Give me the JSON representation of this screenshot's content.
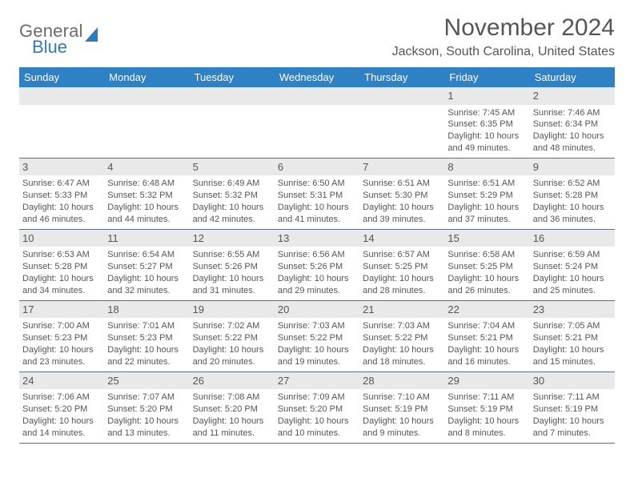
{
  "brand": {
    "word1": "General",
    "word2": "Blue"
  },
  "title": "November 2024",
  "location": "Jackson, South Carolina, United States",
  "colors": {
    "header_bg": "#2e81c4",
    "header_fg": "#ffffff",
    "daynum_bg": "#e9e9e9",
    "week_border": "#5b7086",
    "text": "#555555",
    "brand_gray": "#6b6b6b",
    "brand_blue": "#2e7bc0"
  },
  "dayLabels": [
    "Sunday",
    "Monday",
    "Tuesday",
    "Wednesday",
    "Thursday",
    "Friday",
    "Saturday"
  ],
  "weeks": [
    [
      null,
      null,
      null,
      null,
      null,
      {
        "n": "1",
        "sunrise": "7:45 AM",
        "sunset": "6:35 PM",
        "daylight": "10 hours and 49 minutes."
      },
      {
        "n": "2",
        "sunrise": "7:46 AM",
        "sunset": "6:34 PM",
        "daylight": "10 hours and 48 minutes."
      }
    ],
    [
      {
        "n": "3",
        "sunrise": "6:47 AM",
        "sunset": "5:33 PM",
        "daylight": "10 hours and 46 minutes."
      },
      {
        "n": "4",
        "sunrise": "6:48 AM",
        "sunset": "5:32 PM",
        "daylight": "10 hours and 44 minutes."
      },
      {
        "n": "5",
        "sunrise": "6:49 AM",
        "sunset": "5:32 PM",
        "daylight": "10 hours and 42 minutes."
      },
      {
        "n": "6",
        "sunrise": "6:50 AM",
        "sunset": "5:31 PM",
        "daylight": "10 hours and 41 minutes."
      },
      {
        "n": "7",
        "sunrise": "6:51 AM",
        "sunset": "5:30 PM",
        "daylight": "10 hours and 39 minutes."
      },
      {
        "n": "8",
        "sunrise": "6:51 AM",
        "sunset": "5:29 PM",
        "daylight": "10 hours and 37 minutes."
      },
      {
        "n": "9",
        "sunrise": "6:52 AM",
        "sunset": "5:28 PM",
        "daylight": "10 hours and 36 minutes."
      }
    ],
    [
      {
        "n": "10",
        "sunrise": "6:53 AM",
        "sunset": "5:28 PM",
        "daylight": "10 hours and 34 minutes."
      },
      {
        "n": "11",
        "sunrise": "6:54 AM",
        "sunset": "5:27 PM",
        "daylight": "10 hours and 32 minutes."
      },
      {
        "n": "12",
        "sunrise": "6:55 AM",
        "sunset": "5:26 PM",
        "daylight": "10 hours and 31 minutes."
      },
      {
        "n": "13",
        "sunrise": "6:56 AM",
        "sunset": "5:26 PM",
        "daylight": "10 hours and 29 minutes."
      },
      {
        "n": "14",
        "sunrise": "6:57 AM",
        "sunset": "5:25 PM",
        "daylight": "10 hours and 28 minutes."
      },
      {
        "n": "15",
        "sunrise": "6:58 AM",
        "sunset": "5:25 PM",
        "daylight": "10 hours and 26 minutes."
      },
      {
        "n": "16",
        "sunrise": "6:59 AM",
        "sunset": "5:24 PM",
        "daylight": "10 hours and 25 minutes."
      }
    ],
    [
      {
        "n": "17",
        "sunrise": "7:00 AM",
        "sunset": "5:23 PM",
        "daylight": "10 hours and 23 minutes."
      },
      {
        "n": "18",
        "sunrise": "7:01 AM",
        "sunset": "5:23 PM",
        "daylight": "10 hours and 22 minutes."
      },
      {
        "n": "19",
        "sunrise": "7:02 AM",
        "sunset": "5:22 PM",
        "daylight": "10 hours and 20 minutes."
      },
      {
        "n": "20",
        "sunrise": "7:03 AM",
        "sunset": "5:22 PM",
        "daylight": "10 hours and 19 minutes."
      },
      {
        "n": "21",
        "sunrise": "7:03 AM",
        "sunset": "5:22 PM",
        "daylight": "10 hours and 18 minutes."
      },
      {
        "n": "22",
        "sunrise": "7:04 AM",
        "sunset": "5:21 PM",
        "daylight": "10 hours and 16 minutes."
      },
      {
        "n": "23",
        "sunrise": "7:05 AM",
        "sunset": "5:21 PM",
        "daylight": "10 hours and 15 minutes."
      }
    ],
    [
      {
        "n": "24",
        "sunrise": "7:06 AM",
        "sunset": "5:20 PM",
        "daylight": "10 hours and 14 minutes."
      },
      {
        "n": "25",
        "sunrise": "7:07 AM",
        "sunset": "5:20 PM",
        "daylight": "10 hours and 13 minutes."
      },
      {
        "n": "26",
        "sunrise": "7:08 AM",
        "sunset": "5:20 PM",
        "daylight": "10 hours and 11 minutes."
      },
      {
        "n": "27",
        "sunrise": "7:09 AM",
        "sunset": "5:20 PM",
        "daylight": "10 hours and 10 minutes."
      },
      {
        "n": "28",
        "sunrise": "7:10 AM",
        "sunset": "5:19 PM",
        "daylight": "10 hours and 9 minutes."
      },
      {
        "n": "29",
        "sunrise": "7:11 AM",
        "sunset": "5:19 PM",
        "daylight": "10 hours and 8 minutes."
      },
      {
        "n": "30",
        "sunrise": "7:11 AM",
        "sunset": "5:19 PM",
        "daylight": "10 hours and 7 minutes."
      }
    ]
  ],
  "labels": {
    "sunrise": "Sunrise:",
    "sunset": "Sunset:",
    "daylight": "Daylight:"
  }
}
